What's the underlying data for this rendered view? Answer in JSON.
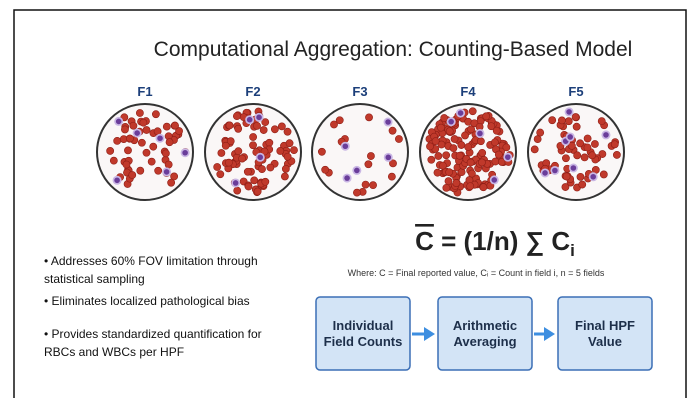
{
  "title": "Computational Aggregation: Counting-Based Model",
  "fields": [
    "F1",
    "F2",
    "F3",
    "F4",
    "F5"
  ],
  "bullets": [
    "• Addresses 60% FOV limitation through statistical sampling",
    "• Eliminates localized pathological bias",
    "• Provides standardized quantification for RBCs and WBCs per HPF"
  ],
  "formula": {
    "symbol": "C",
    "rhs": " = (1/n) ∑ C",
    "subscript": "i"
  },
  "where": "Where: C = Final reported value, Cᵢ = Count in field i, n = 5 fields",
  "steps": [
    "Individual Field Counts",
    "Arithmetic Averaging",
    "Final HPF Value"
  ]
}
